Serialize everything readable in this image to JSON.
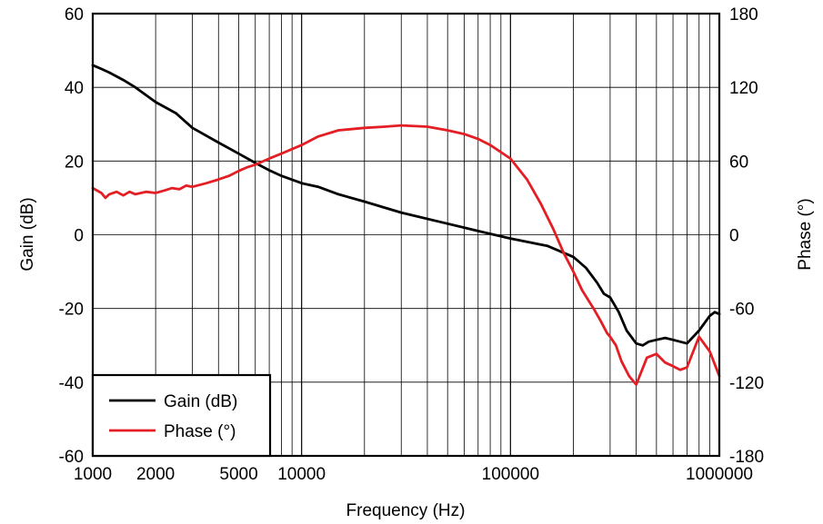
{
  "chart_data": {
    "type": "line",
    "x_scale": "log",
    "grid": true,
    "legend_position": "bottom-left",
    "xlabel": "Frequency (Hz)",
    "ylabel_left": "Gain (dB)",
    "ylabel_right": "Phase (°)",
    "xlim": [
      1000,
      1000000
    ],
    "ylim_left": [
      -60,
      60
    ],
    "ylim_right": [
      -180,
      180
    ],
    "x_tick_values": [
      1000,
      2000,
      5000,
      10000,
      100000,
      1000000
    ],
    "x_tick_labels": [
      "1000",
      "2000",
      "5000",
      "10000",
      "100000",
      "1000000"
    ],
    "y_left_ticks": [
      60,
      40,
      20,
      0,
      -20,
      -40,
      -60
    ],
    "y_left_tick_labels": [
      "60",
      "40",
      "20",
      "0",
      "-20",
      "-40",
      "-60"
    ],
    "y_right_ticks": [
      180,
      120,
      60,
      0,
      -60,
      -120,
      -180
    ],
    "y_right_tick_labels": [
      "180",
      "120",
      "60",
      "0",
      "-60",
      "-120",
      "-180"
    ],
    "series": [
      {
        "name": "Gain (dB)",
        "axis": "left",
        "color": "#000000",
        "x": [
          1000,
          1100,
          1200,
          1400,
          1600,
          2000,
          2500,
          3000,
          4000,
          5000,
          6000,
          7000,
          8000,
          10000,
          12000,
          15000,
          20000,
          30000,
          50000,
          70000,
          100000,
          150000,
          200000,
          230000,
          260000,
          280000,
          300000,
          330000,
          360000,
          400000,
          430000,
          460000,
          500000,
          550000,
          600000,
          700000,
          800000,
          900000,
          950000,
          1000000
        ],
        "y": [
          46,
          45,
          44,
          42,
          40,
          36,
          33,
          29,
          25,
          22,
          19.5,
          17.5,
          16,
          14,
          13,
          11,
          9,
          6,
          3,
          1,
          -1,
          -3,
          -6,
          -9,
          -13,
          -16,
          -17,
          -21,
          -26,
          -29.5,
          -30,
          -29,
          -28.5,
          -28,
          -28.5,
          -29.5,
          -26,
          -22,
          -21,
          -21.5
        ]
      },
      {
        "name": "Phase (°)",
        "axis": "right",
        "color": "#e31e24",
        "x": [
          1000,
          1100,
          1150,
          1200,
          1300,
          1400,
          1500,
          1600,
          1700,
          1800,
          2000,
          2200,
          2400,
          2600,
          2800,
          3000,
          3500,
          4000,
          4500,
          5000,
          5500,
          6000,
          7000,
          8000,
          10000,
          12000,
          15000,
          20000,
          25000,
          30000,
          40000,
          50000,
          60000,
          70000,
          80000,
          100000,
          120000,
          140000,
          160000,
          180000,
          200000,
          220000,
          250000,
          270000,
          290000,
          300000,
          320000,
          340000,
          370000,
          400000,
          450000,
          500000,
          550000,
          600000,
          650000,
          700000,
          750000,
          800000,
          900000,
          1000000
        ],
        "y": [
          38,
          34,
          30,
          33,
          35,
          32,
          35,
          33,
          34,
          35,
          34,
          36,
          38,
          37,
          40,
          39,
          42,
          45,
          48,
          52,
          55,
          57,
          62,
          66,
          73,
          80,
          85,
          87,
          88,
          89,
          88,
          85,
          82,
          78,
          73,
          62,
          45,
          25,
          5,
          -15,
          -30,
          -45,
          -60,
          -70,
          -80,
          -83,
          -90,
          -103,
          -115,
          -122,
          -100,
          -97,
          -104,
          -107,
          -110,
          -108,
          -95,
          -83,
          -95,
          -115
        ]
      }
    ],
    "legend": [
      "Gain (dB)",
      "Phase (°)"
    ]
  }
}
